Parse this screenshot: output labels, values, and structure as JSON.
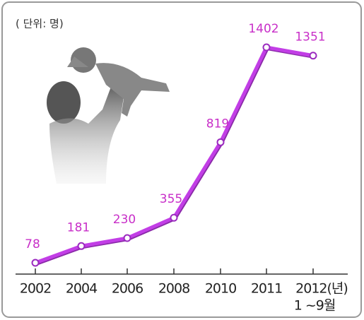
{
  "chart_data": {
    "type": "line",
    "unit": "( 단위: 명)",
    "categories": [
      "2002",
      "2004",
      "2006",
      "2008",
      "2010",
      "2011",
      "2012(년)"
    ],
    "category_note": "1 ~9월",
    "series": [
      {
        "color": "#c23ee6",
        "values": [
          78,
          181,
          230,
          355,
          819,
          1402,
          1351
        ]
      }
    ]
  }
}
